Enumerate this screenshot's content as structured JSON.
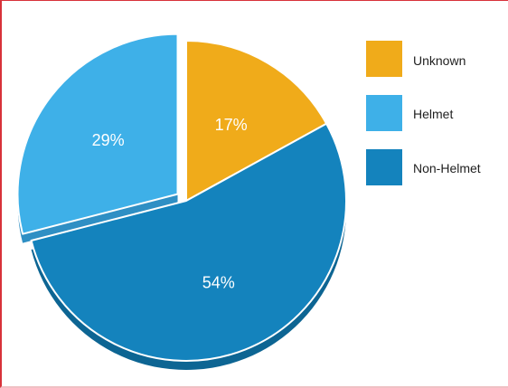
{
  "chart_data": {
    "type": "pie",
    "title": "",
    "legend_position": "right",
    "slices": [
      {
        "label": "Unknown",
        "value": 17,
        "display": "17%",
        "color": "#f0ab1a",
        "side_color": "#c98a0f",
        "exploded": false
      },
      {
        "label": "Non-Helmet",
        "value": 54,
        "display": "54%",
        "color": "#1483bd",
        "side_color": "#0d6593",
        "exploded": false
      },
      {
        "label": "Helmet",
        "value": 29,
        "display": "29%",
        "color": "#3eb0e8",
        "side_color": "#2f8fc4",
        "exploded": true
      }
    ],
    "legend": [
      {
        "label": "Unknown",
        "color": "#f0ab1a"
      },
      {
        "label": "Helmet",
        "color": "#3eb0e8"
      },
      {
        "label": "Non-Helmet",
        "color": "#1483bd"
      }
    ]
  }
}
